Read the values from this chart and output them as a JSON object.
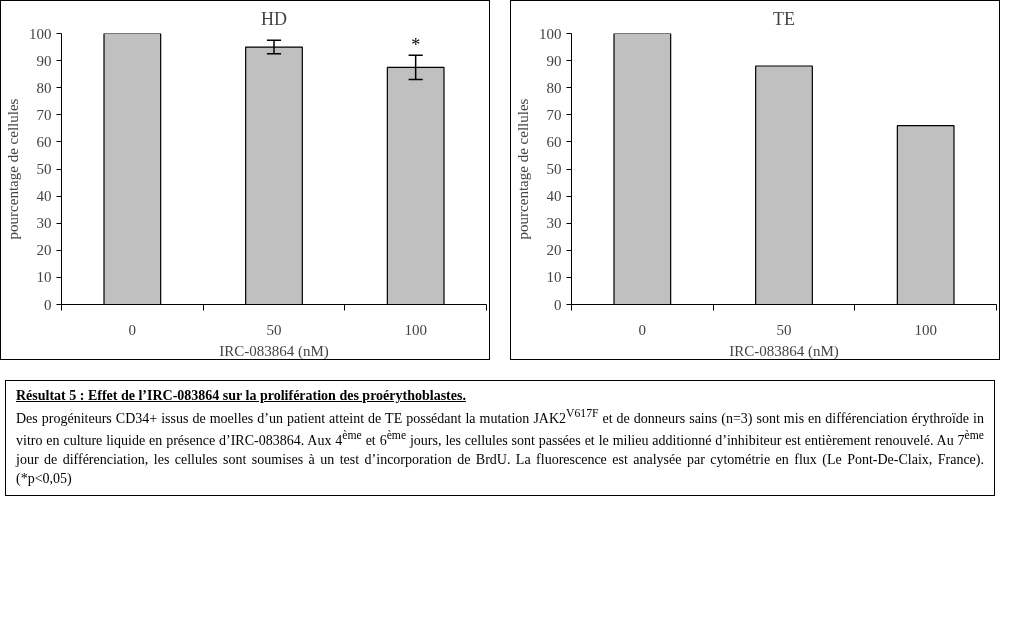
{
  "chart_data": [
    {
      "type": "bar",
      "title": "HD",
      "xlabel": "IRC-083864 (nM)",
      "ylabel": "pourcentage de cellules",
      "categories": [
        "0",
        "50",
        "100"
      ],
      "values": [
        100,
        95,
        87.5
      ],
      "errors": [
        null,
        2.5,
        4.5
      ],
      "color": "#c0c0c0",
      "ylim": [
        0,
        100
      ],
      "yticks": [
        0,
        10,
        20,
        30,
        40,
        50,
        60,
        70,
        80,
        90,
        100
      ],
      "grid": false,
      "annotations": [
        {
          "text": "*",
          "x": "100",
          "y": 92
        }
      ]
    },
    {
      "type": "bar",
      "title": "TE",
      "xlabel": "IRC-083864 (nM)",
      "ylabel": "pourcentage de cellules",
      "categories": [
        "0",
        "50",
        "100"
      ],
      "values": [
        100,
        88,
        66
      ],
      "color": "#c0c0c0",
      "ylim": [
        0,
        100
      ],
      "yticks": [
        0,
        10,
        20,
        30,
        40,
        50,
        60,
        70,
        80,
        90,
        100
      ],
      "grid": false
    },
    {
      "type": "other",
      "title": "Résultat 5 : Effet de l’IRC-083864 sur la prolifération des proérythoblastes.",
      "annotations": [
        "Des progéniteurs CD34+ issus de moelles d’un patient atteint de TE possédant la mutation JAK2$^{V617F}$ et de donneurs sains (n=3)  sont mis en différenciation érythroïde in vitro en culture liquide en présence d’IRC-083864. Aux 4$^{ème}$ et 6$^{ème}$ jours, les cellules sont passées et le milieu additionné d’inhibiteur est entièrement renouvelé. Au 7$^{ème}$ jour de différenciation, les cellules sont soumises à un test d’incorporation de BrdU. La fluorescence est analysée par cytométrie en flux (Le Pont-De-Claix, France). (*p<0,05)"
      ]
    }
  ]
}
